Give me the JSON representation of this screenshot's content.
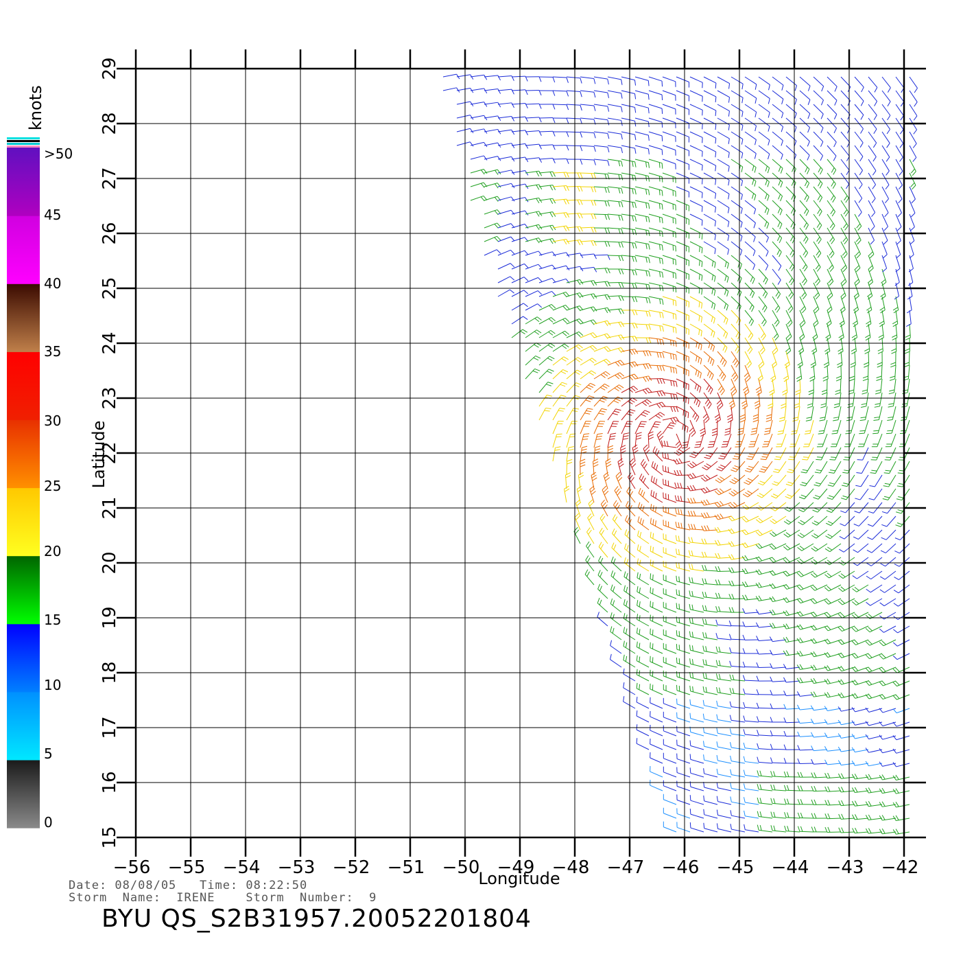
{
  "map": {
    "x_axis_title": "Longitude",
    "y_axis_title": "Latitude",
    "lon_ticks": [
      "−56",
      "−55",
      "−54",
      "−53",
      "−52",
      "−51",
      "−50",
      "−49",
      "−48",
      "−47",
      "−46",
      "−45",
      "−44",
      "−43",
      "−42"
    ],
    "lat_ticks": [
      "15",
      "16",
      "17",
      "18",
      "19",
      "20",
      "21",
      "22",
      "23",
      "24",
      "25",
      "26",
      "27",
      "28",
      "29"
    ],
    "lon_range": [
      -56,
      -42
    ],
    "lat_range": [
      15,
      29
    ],
    "grid": true
  },
  "colorbar": {
    "unit_label": "knots",
    "labels": [
      ">50",
      "45",
      "40",
      "35",
      "30",
      "25",
      "20",
      "15",
      "10",
      "5",
      "0"
    ],
    "bands": [
      {
        "range": "0-5",
        "top": "#1a1a1a",
        "bottom": "#8a8a8a"
      },
      {
        "range": "5-10",
        "top": "#0090ff",
        "bottom": "#00e8ff"
      },
      {
        "range": "10-15",
        "top": "#0000ff",
        "bottom": "#0080ff"
      },
      {
        "range": "15-20",
        "top": "#006400",
        "bottom": "#00ff00"
      },
      {
        "range": "20-25",
        "top": "#ffc800",
        "bottom": "#ffff20"
      },
      {
        "range": "25-30",
        "top": "#e83000",
        "bottom": "#ff9000"
      },
      {
        "range": "30-35",
        "top": "#ff0000",
        "bottom": "#f02000"
      },
      {
        "range": "35-40",
        "top": "#3a0a00",
        "bottom": "#c0804a"
      },
      {
        "range": "40-45",
        "top": "#d000e0",
        "bottom": "#ff00ff"
      },
      {
        "range": "45-50",
        "top": "#6010c0",
        "bottom": "#b000c0"
      }
    ]
  },
  "info": {
    "line1": "Date: 08/08/05   Time: 08:22:50",
    "line2": "Storm  Name:  IRENE    Storm  Number:  9",
    "product_id": "BYU  QS_S2B31957.20052201804"
  }
}
